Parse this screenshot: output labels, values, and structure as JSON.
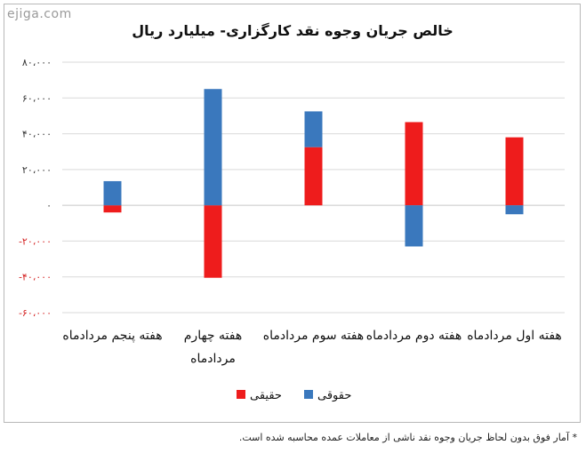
{
  "watermark": "ejiga.com",
  "footnote": "* آمار فوق بدون لحاظ جریان وجوه نقد ناشی از معاملات عمده محاسبه شده است.",
  "chart_data": {
    "type": "bar",
    "stacked": true,
    "title": "خالص جریان وجوه نقد کارگزاری- میلیارد ریال",
    "xlabel": "",
    "ylabel": "",
    "ylim": [
      -60000,
      80000
    ],
    "yticks": [
      80000,
      60000,
      40000,
      20000,
      0,
      -20000,
      -40000,
      -60000
    ],
    "ytick_labels": [
      "۸۰،۰۰۰",
      "۶۰،۰۰۰",
      "۴۰،۰۰۰",
      "۲۰،۰۰۰",
      "۰",
      "-۲۰،۰۰۰",
      "-۴۰،۰۰۰",
      "-۶۰،۰۰۰"
    ],
    "grid": true,
    "legend_position": "bottom",
    "categories": [
      [
        "هفته اول مردادماه"
      ],
      [
        "هفته دوم مردادماه"
      ],
      [
        "هفته سوم مردادماه"
      ],
      [
        "هفته چهارم",
        "مردادماه"
      ],
      [
        "هفته پنجم مردادماه"
      ]
    ],
    "series": [
      {
        "name": "حقیقی",
        "color": "#ee1c1c",
        "values": [
          38000,
          46500,
          32500,
          -40500,
          -4000
        ]
      },
      {
        "name": "حقوقی",
        "color": "#3a78bd",
        "values": [
          -5000,
          -23000,
          20000,
          65000,
          13500
        ]
      }
    ],
    "colors": {
      "axis_positive": "#333333",
      "axis_negative": "#d42020",
      "grid": "#d9d9d9"
    }
  }
}
